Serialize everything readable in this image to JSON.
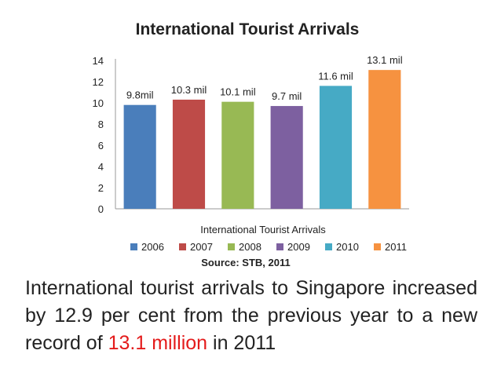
{
  "chart_data": {
    "type": "bar",
    "title": "International Tourist Arrivals",
    "xlabel": "International Tourist Arrivals",
    "ylabel": "",
    "source": "Source: STB, 2011",
    "ylim": [
      0,
      14
    ],
    "yticks": [
      0,
      2,
      4,
      6,
      8,
      10,
      12,
      14
    ],
    "grid": false,
    "legend_position": "bottom",
    "categories": [
      "2006",
      "2007",
      "2008",
      "2009",
      "2010",
      "2011"
    ],
    "values": [
      9.8,
      10.3,
      10.1,
      9.7,
      11.6,
      13.1
    ],
    "data_labels": [
      "9.8mil",
      "10.3 mil",
      "10.1 mil",
      "9.7 mil",
      "11.6 mil",
      "13.1 mil"
    ],
    "colors": [
      "#4a7ebb",
      "#be4b48",
      "#98b954",
      "#7d60a0",
      "#46aac5",
      "#f69240"
    ]
  },
  "caption": {
    "part1": "International tourist arrivals to Singapore increased by 12.9 per cent from the previous year to a new record of ",
    "highlight": "13.1 million",
    "part2": " in 2011",
    "highlight_color": "#e41b1b"
  }
}
